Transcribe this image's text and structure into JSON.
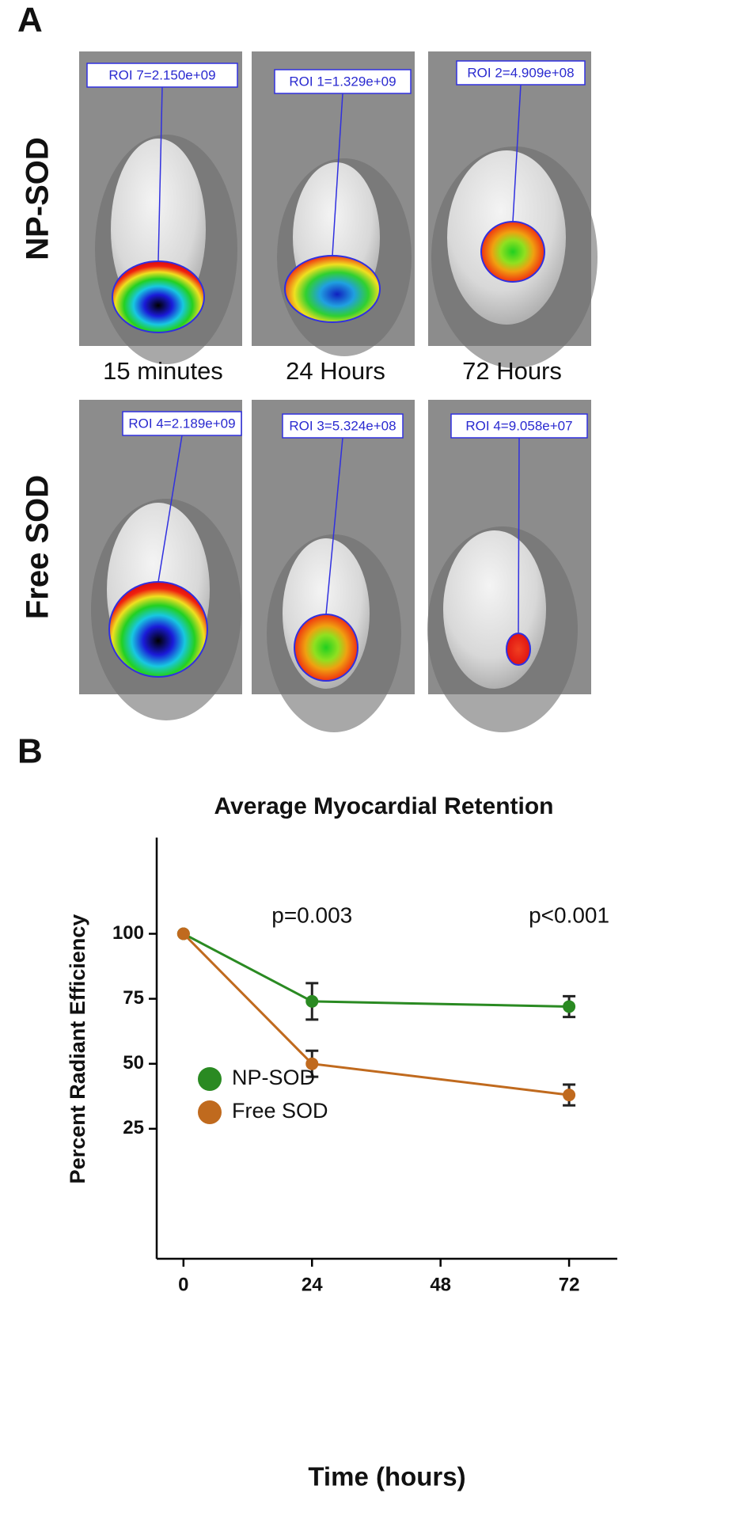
{
  "panel_a": {
    "label": "A",
    "rows": [
      "NP-SOD",
      "Free SOD"
    ],
    "times": [
      "15 minutes",
      "24 Hours",
      "72 Hours"
    ],
    "roi": [
      [
        "ROI 7=2.150e+09",
        "ROI 1=1.329e+09",
        "ROI 2=4.909e+08"
      ],
      [
        "ROI 4=2.189e+09",
        "ROI 3=5.324e+08",
        "ROI 4=9.058e+07"
      ]
    ]
  },
  "chart_data": {
    "type": "line",
    "panel_label": "B",
    "title": "Average Myocardial Retention",
    "x_label": "Time (hours)",
    "y_label": "Percent Radiant Efficiency",
    "x": [
      0,
      24,
      72
    ],
    "series": [
      {
        "name": "NP-SOD",
        "color": "#2a8a22",
        "values": [
          100,
          74,
          72
        ],
        "errors": [
          0,
          7,
          4
        ]
      },
      {
        "name": "Free SOD",
        "color": "#c06a1e",
        "values": [
          100,
          50,
          38
        ],
        "errors": [
          0,
          5,
          4
        ]
      }
    ],
    "xlim": [
      -5,
      81
    ],
    "xticks": [
      0,
      24,
      48,
      72
    ],
    "ylim": [
      -25,
      137
    ],
    "yticks": [
      25,
      50,
      75,
      100
    ],
    "annotations": [
      {
        "text": "p=0.003",
        "x": 24
      },
      {
        "text": "p<0.001",
        "x": 72
      }
    ],
    "legend": "lower-left"
  }
}
